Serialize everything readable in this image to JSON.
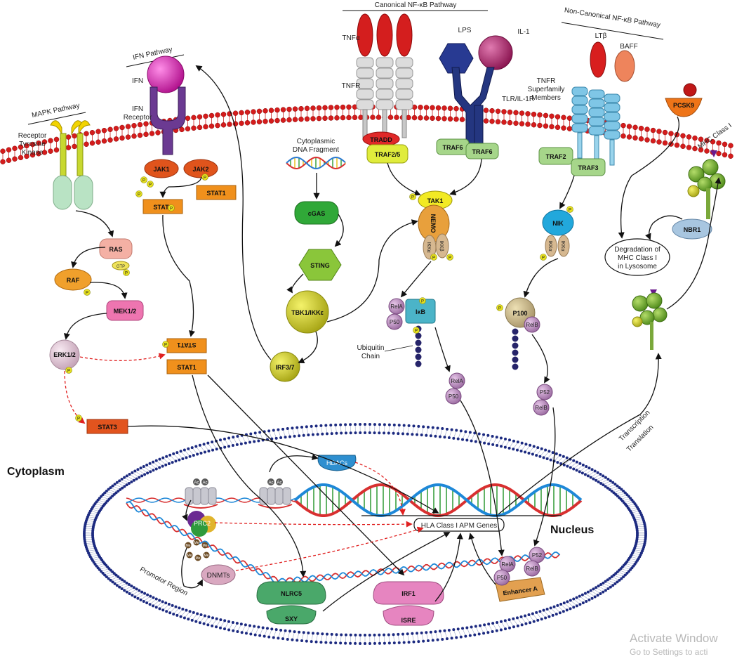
{
  "titles": {
    "canonical": "Canonical NF-κB Pathway",
    "noncanonical": "Non-Canonical NF-κB Pathway",
    "ifn": "IFN Pathway",
    "mapk": "MAPK Pathway"
  },
  "regions": {
    "cytoplasm": "Cytoplasm",
    "nucleus": "Nucleus"
  },
  "receptors": {
    "rtk1": "Receptor",
    "rtk2": "Tyrosine",
    "rtk3": "Kinase",
    "ifn": "IFN",
    "ifnr1": "IFN",
    "ifnr2": "Receptor",
    "tnfa": "TNFα",
    "tnfr": "TNFR",
    "lps": "LPS",
    "il1": "IL-1",
    "tlr": "TLR/IL-1R",
    "ltb": "LTβ",
    "baff": "BAFF",
    "tnfrs1": "TNFR",
    "tnfrs2": "Superfamily",
    "tnfrs3": "Members",
    "pcsk9": "PCSK9",
    "mhc": "MHC Class I",
    "nbr1": "NBR1"
  },
  "adaptors": {
    "tradd": "TRADD",
    "traf25": "TRAF2/5",
    "traf6a": "TRAF6",
    "traf6b": "TRAF6",
    "traf2": "TRAF2",
    "traf3": "TRAF3"
  },
  "kinases": {
    "jak1": "JAK1",
    "jak2": "JAK2",
    "stat1a": "STAT1",
    "stat1b": "STAT1",
    "stat1dimer_top": "STAT1",
    "stat1dimer_bot": "STAT1",
    "stat3": "STAT3",
    "ras": "RAS",
    "gtp": "GTP",
    "raf": "RAF",
    "mek": "MEK1/2",
    "erk": "ERK1/2",
    "tak1": "TAK1",
    "nemo": "NEMO",
    "ikka": "IKKα",
    "ikkb": "IKKβ",
    "nik": "NIK",
    "nik_ikka1": "IKKα",
    "nik_ikka2": "IKKα",
    "cgas": "cGAS",
    "sting": "STING",
    "tbk1": "TBK1/IKKε",
    "irf37": "IRF3/7"
  },
  "nfkb": {
    "rela1": "RelA",
    "p50a": "P50",
    "ikb": "IκB",
    "rela2": "RelA",
    "p50b": "P50",
    "p100": "P100",
    "relb1": "RelB",
    "p52a": "P52",
    "relb2": "RelB",
    "ubiq1": "Ubiquitin",
    "ubiq2": "Chain"
  },
  "misc": {
    "cyto1": "Cytoplasmic",
    "cyto2": "DNA Fragment",
    "deg1": "Degradation of",
    "deg2": "MHC Class I",
    "deg3": "in Lysosome",
    "tt1": "Transcription",
    "tt2": "Translation",
    "p": "P",
    "ac": "Ac",
    "me": "Me"
  },
  "nucleus": {
    "hdacs": "HDACs",
    "prc2": "PRC2",
    "dnmts": "DNMTs",
    "promoter": "Promotor Region",
    "hla": "HLA Class I APM Genes",
    "nlrc5": "NLRC5",
    "sxy": "SXY",
    "irf1": "IRF1",
    "isre": "ISRE",
    "enhancer": "Enhancer A",
    "rela": "RelA",
    "p50": "P50",
    "p52": "P52",
    "relb": "RelB"
  },
  "watermark": {
    "line1": "Activate Window",
    "line2": "Go to Settings to acti"
  }
}
